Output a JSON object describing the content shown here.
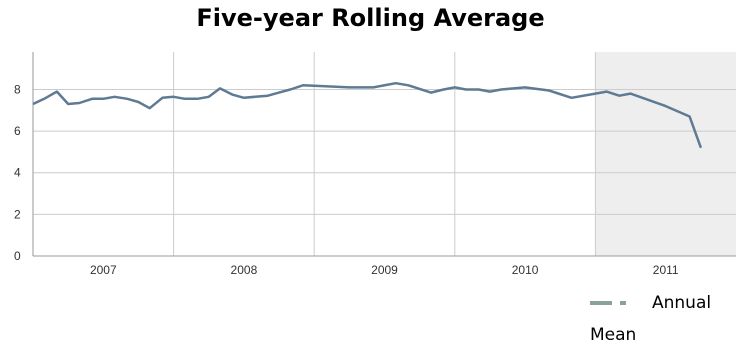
{
  "title": "Five-year Rolling Average",
  "legend": {
    "line1": "Annual",
    "line2": "Mean",
    "color": "#8aa39a"
  },
  "colors": {
    "line": "#5f7a93",
    "shade": "#eeeeee",
    "grid": "#cccccc"
  },
  "chart_data": {
    "type": "line",
    "title": "Five-year Rolling Average",
    "xlabel": "",
    "ylabel": "",
    "x_ticks": [
      "2007",
      "2008",
      "2009",
      "2010",
      "2011"
    ],
    "y_ticks": [
      0,
      2,
      4,
      6,
      8
    ],
    "xlim": [
      2006.5,
      2011.5
    ],
    "ylim": [
      0,
      9.8
    ],
    "grid": true,
    "shaded_region": [
      2010.5,
      2011.5
    ],
    "legend_position": "bottom-right",
    "series": [
      {
        "name": "Annual Mean",
        "x": [
          2006.5,
          2006.58,
          2006.67,
          2006.75,
          2006.83,
          2006.92,
          2007.0,
          2007.08,
          2007.17,
          2007.25,
          2007.33,
          2007.42,
          2007.5,
          2007.58,
          2007.67,
          2007.75,
          2007.83,
          2007.92,
          2008.0,
          2008.08,
          2008.17,
          2008.25,
          2008.33,
          2008.42,
          2008.58,
          2008.75,
          2008.92,
          2009.08,
          2009.17,
          2009.33,
          2009.42,
          2009.5,
          2009.58,
          2009.67,
          2009.75,
          2009.83,
          2010.0,
          2010.17,
          2010.33,
          2010.5,
          2010.58,
          2010.67,
          2010.75,
          2011.0,
          2011.17,
          2011.25
        ],
        "values": [
          7.3,
          7.55,
          7.9,
          7.3,
          7.35,
          7.55,
          7.55,
          7.65,
          7.55,
          7.4,
          7.1,
          7.6,
          7.65,
          7.55,
          7.55,
          7.65,
          8.05,
          7.75,
          7.6,
          7.65,
          7.7,
          7.85,
          8.0,
          8.2,
          8.15,
          8.1,
          8.1,
          8.3,
          8.2,
          7.85,
          8.0,
          8.1,
          8.0,
          8.0,
          7.9,
          8.0,
          8.1,
          7.95,
          7.6,
          7.8,
          7.9,
          7.7,
          7.8,
          7.2,
          6.7,
          5.2
        ]
      }
    ]
  }
}
